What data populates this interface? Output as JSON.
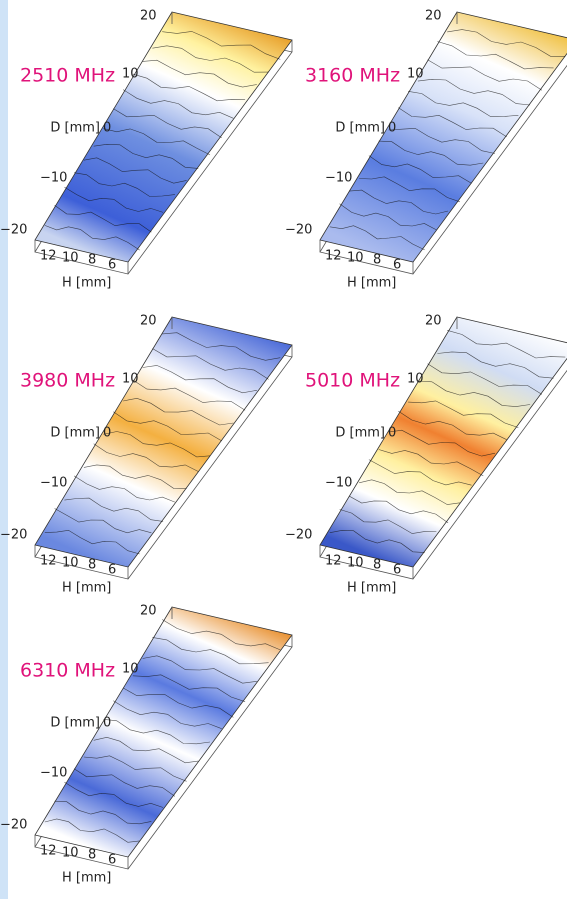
{
  "panels": [
    {
      "label": "2510 MHz",
      "d_label": "D [mm]",
      "h_label": "H [mm]",
      "d_ticks": [
        "20",
        "10",
        "0",
        "−10",
        "−20"
      ],
      "h_ticks": [
        "12",
        "10",
        "8",
        "6"
      ]
    },
    {
      "label": "3160 MHz",
      "d_label": "D [mm]",
      "h_label": "H [mm]",
      "d_ticks": [
        "20",
        "10",
        "0",
        "−10",
        "−20"
      ],
      "h_ticks": [
        "12",
        "10",
        "8",
        "6"
      ]
    },
    {
      "label": "3980 MHz",
      "d_label": "D [mm]",
      "h_label": "H [mm]",
      "d_ticks": [
        "20",
        "10",
        "0",
        "−10",
        "−20"
      ],
      "h_ticks": [
        "12",
        "10",
        "8",
        "6"
      ]
    },
    {
      "label": "5010 MHz",
      "d_label": "D [mm]",
      "h_label": "H [mm]",
      "d_ticks": [
        "20",
        "10",
        "0",
        "−10",
        "−20"
      ],
      "h_ticks": [
        "12",
        "10",
        "8",
        "6"
      ]
    },
    {
      "label": "6310 MHz",
      "d_label": "D [mm]",
      "h_label": "H [mm]",
      "d_ticks": [
        "20",
        "10",
        "0",
        "−10",
        "−20"
      ],
      "h_ticks": [
        "12",
        "10",
        "8",
        "6"
      ]
    }
  ]
}
